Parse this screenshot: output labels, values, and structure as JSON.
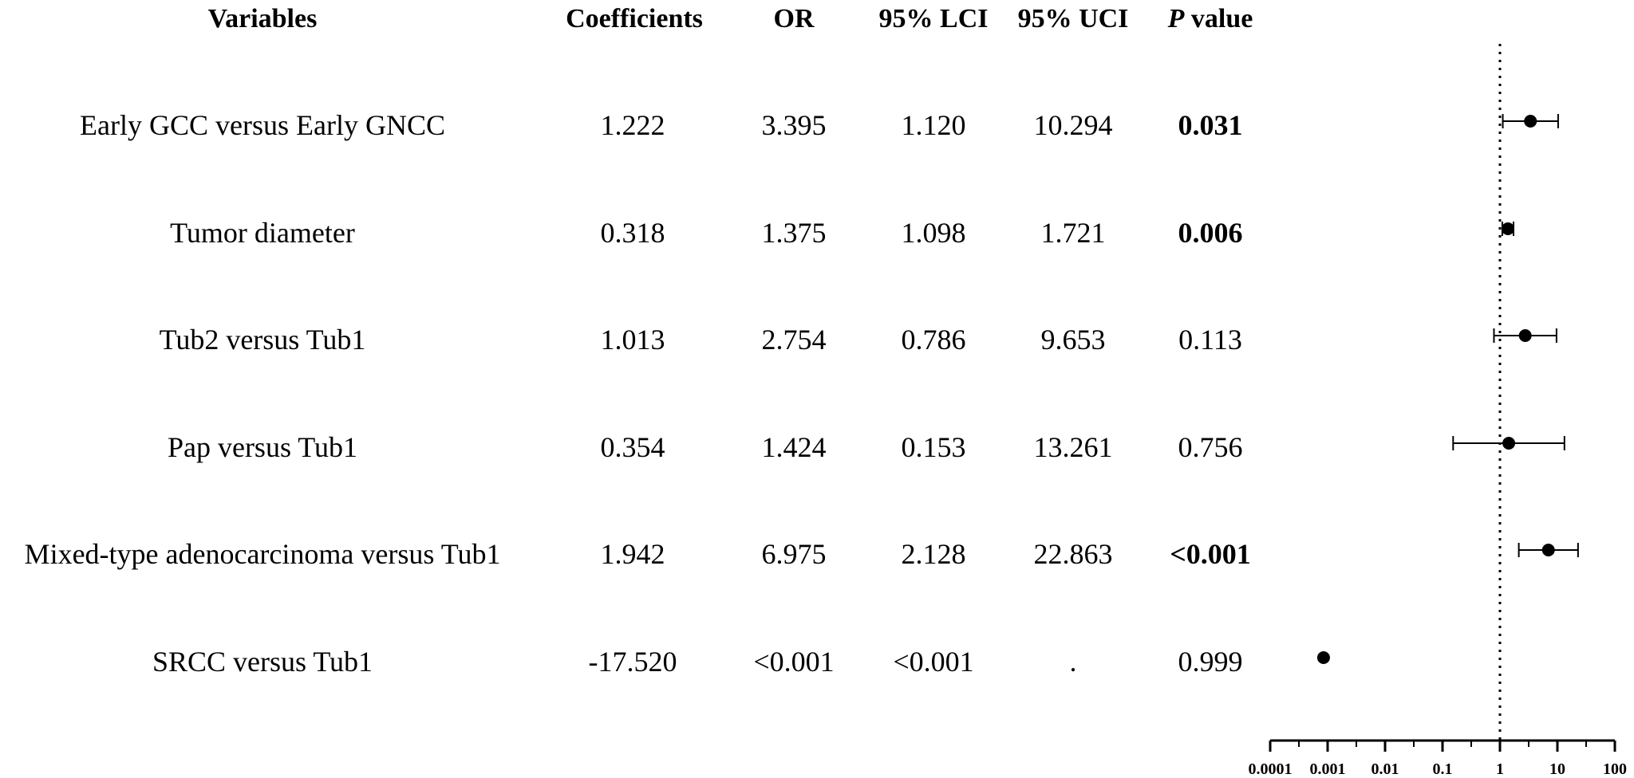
{
  "table": {
    "headers": {
      "variables": "Variables",
      "coefficients": "Coefficients",
      "or": "OR",
      "lci": "95% LCI",
      "uci": "95% UCI",
      "p_italic": "P",
      "p_rest": " value"
    },
    "rows": [
      {
        "variable": "Early GCC versus Early GNCC",
        "coef": "1.222",
        "or": "3.395",
        "lci": "1.120",
        "uci": "10.294",
        "p": "0.031",
        "p_bold": true
      },
      {
        "variable": "Tumor diameter",
        "coef": "0.318",
        "or": "1.375",
        "lci": "1.098",
        "uci": "1.721",
        "p": "0.006",
        "p_bold": true
      },
      {
        "variable": "Tub2 versus Tub1",
        "coef": "1.013",
        "or": "2.754",
        "lci": "0.786",
        "uci": "9.653",
        "p": "0.113",
        "p_bold": false
      },
      {
        "variable": "Pap versus Tub1",
        "coef": "0.354",
        "or": "1.424",
        "lci": "0.153",
        "uci": "13.261",
        "p": "0.756",
        "p_bold": false
      },
      {
        "variable": "Mixed-type adenocarcinoma versus Tub1",
        "coef": "1.942",
        "or": "6.975",
        "lci": "2.128",
        "uci": "22.863",
        "p": "<0.001",
        "p_bold": true
      },
      {
        "variable": "SRCC versus Tub1",
        "coef": "-17.520",
        "or": "<0.001",
        "lci": "<0.001",
        "uci": ".",
        "p": "0.999",
        "p_bold": false
      }
    ]
  },
  "chart_data": {
    "type": "scatter",
    "subtype": "forest-plot",
    "scale": "log10",
    "xlim": [
      0.0001,
      100
    ],
    "x_ticks": [
      "0.0001",
      "0.001",
      "0.01",
      "0.1",
      "1",
      "10",
      "100"
    ],
    "x_tick_values": [
      0.0001,
      0.001,
      0.01,
      0.1,
      1,
      10,
      100
    ],
    "reference_line": 1,
    "categories": [
      "Early GCC versus Early GNCC",
      "Tumor diameter",
      "Tub2 versus Tub1",
      "Pap versus Tub1",
      "Mixed-type adenocarcinoma versus Tub1",
      "SRCC versus Tub1"
    ],
    "points": [
      {
        "or": 3.395,
        "lci": 1.12,
        "uci": 10.294
      },
      {
        "or": 1.375,
        "lci": 1.098,
        "uci": 1.721
      },
      {
        "or": 2.754,
        "lci": 0.786,
        "uci": 9.653
      },
      {
        "or": 1.424,
        "lci": 0.153,
        "uci": 13.261
      },
      {
        "or": 6.975,
        "lci": 2.128,
        "uci": 22.863
      },
      {
        "or": 0.00085,
        "lci": null,
        "uci": null
      }
    ],
    "grid": false,
    "legend": "none",
    "marker_color": "#000000"
  }
}
